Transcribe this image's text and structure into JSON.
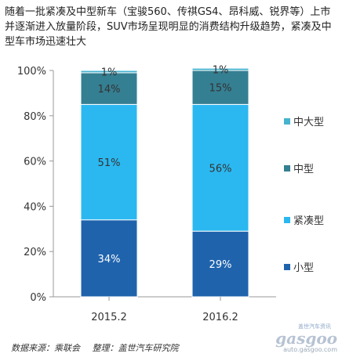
{
  "intro_text": "随着一批紧凑及中型新车（宝骏560、传祺GS4、昂科威、锐界等）上市并逐渐进入放量阶段，SUV市场呈现明显的消费结构升级趋势，紧凑及中型车市场迅速壮大",
  "footer": {
    "source": "数据来源：乘联会",
    "compiler": "整理：盖世汽车研究院"
  },
  "watermark": {
    "small": "盖世汽车资讯",
    "big": "gasgoo",
    "url": "auto.gasgoo.com"
  },
  "chart_data": {
    "type": "bar",
    "stacked": true,
    "percent": true,
    "categories": [
      "2015.2",
      "2016.2"
    ],
    "series": [
      {
        "name": "小型",
        "values": [
          34,
          29
        ],
        "labels": [
          "34%",
          "29%"
        ],
        "color": "#1f63ad"
      },
      {
        "name": "紧凑型",
        "values": [
          51,
          56
        ],
        "labels": [
          "51%",
          "56%"
        ],
        "color": "#2bb8f0"
      },
      {
        "name": "中型",
        "values": [
          14,
          15
        ],
        "labels": [
          "14%",
          "15%"
        ],
        "color": "#357f92"
      },
      {
        "name": "中大型",
        "values": [
          1,
          1
        ],
        "labels": [
          "1%",
          "1%"
        ],
        "color": "#46b3cf"
      }
    ],
    "ylim": [
      0,
      100
    ],
    "yticks": [
      "0%",
      "20%",
      "40%",
      "60%",
      "80%",
      "100%"
    ],
    "ytick_values": [
      0,
      20,
      40,
      60,
      80,
      100
    ],
    "legend_order": [
      "中大型",
      "中型",
      "紧凑型",
      "小型"
    ],
    "legend_position": "right",
    "grid": false
  }
}
